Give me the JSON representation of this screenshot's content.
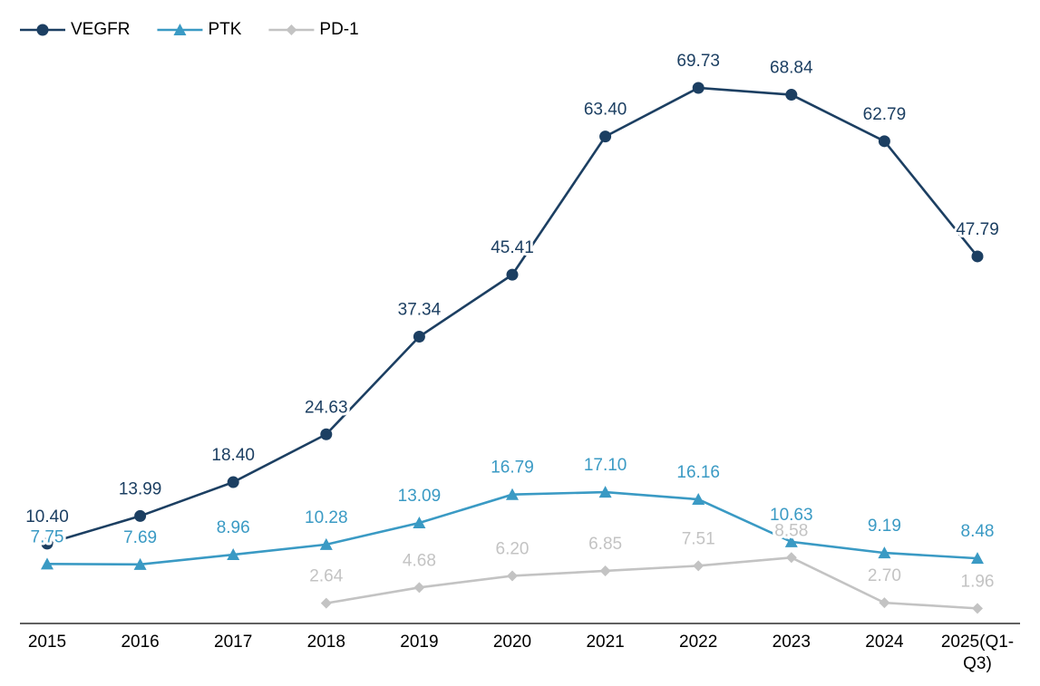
{
  "chart_data": {
    "type": "line",
    "categories": [
      "2015",
      "2016",
      "2017",
      "2018",
      "2019",
      "2020",
      "2021",
      "2022",
      "2023",
      "2024",
      "2025(Q1-Q3)"
    ],
    "series": [
      {
        "name": "VEGFR",
        "color": "#1c3f62",
        "marker": "circle",
        "values": [
          10.4,
          13.99,
          18.4,
          24.63,
          37.34,
          45.41,
          63.4,
          69.73,
          68.84,
          62.79,
          47.79
        ],
        "value_labels": [
          "10.40",
          "13.99",
          "18.40",
          "24.63",
          "37.34",
          "45.41",
          "63.40",
          "69.73",
          "68.84",
          "62.79",
          "47.79"
        ]
      },
      {
        "name": "PTK",
        "color": "#3a9ac4",
        "marker": "triangle",
        "values": [
          7.75,
          7.69,
          8.96,
          10.28,
          13.09,
          16.79,
          17.1,
          16.16,
          10.63,
          9.19,
          8.48
        ],
        "value_labels": [
          "7.75",
          "7.69",
          "8.96",
          "10.28",
          "13.09",
          "16.79",
          "17.10",
          "16.16",
          "10.63",
          "9.19",
          "8.48"
        ]
      },
      {
        "name": "PD-1",
        "color": "#c3c3c3",
        "marker": "diamond",
        "values": [
          null,
          null,
          null,
          2.64,
          4.68,
          6.2,
          6.85,
          7.51,
          8.58,
          2.7,
          1.96
        ],
        "value_labels": [
          null,
          null,
          null,
          "2.64",
          "4.68",
          "6.20",
          "6.85",
          "7.51",
          "8.58",
          "2.70",
          "1.96"
        ]
      }
    ],
    "legend": "top-left"
  }
}
